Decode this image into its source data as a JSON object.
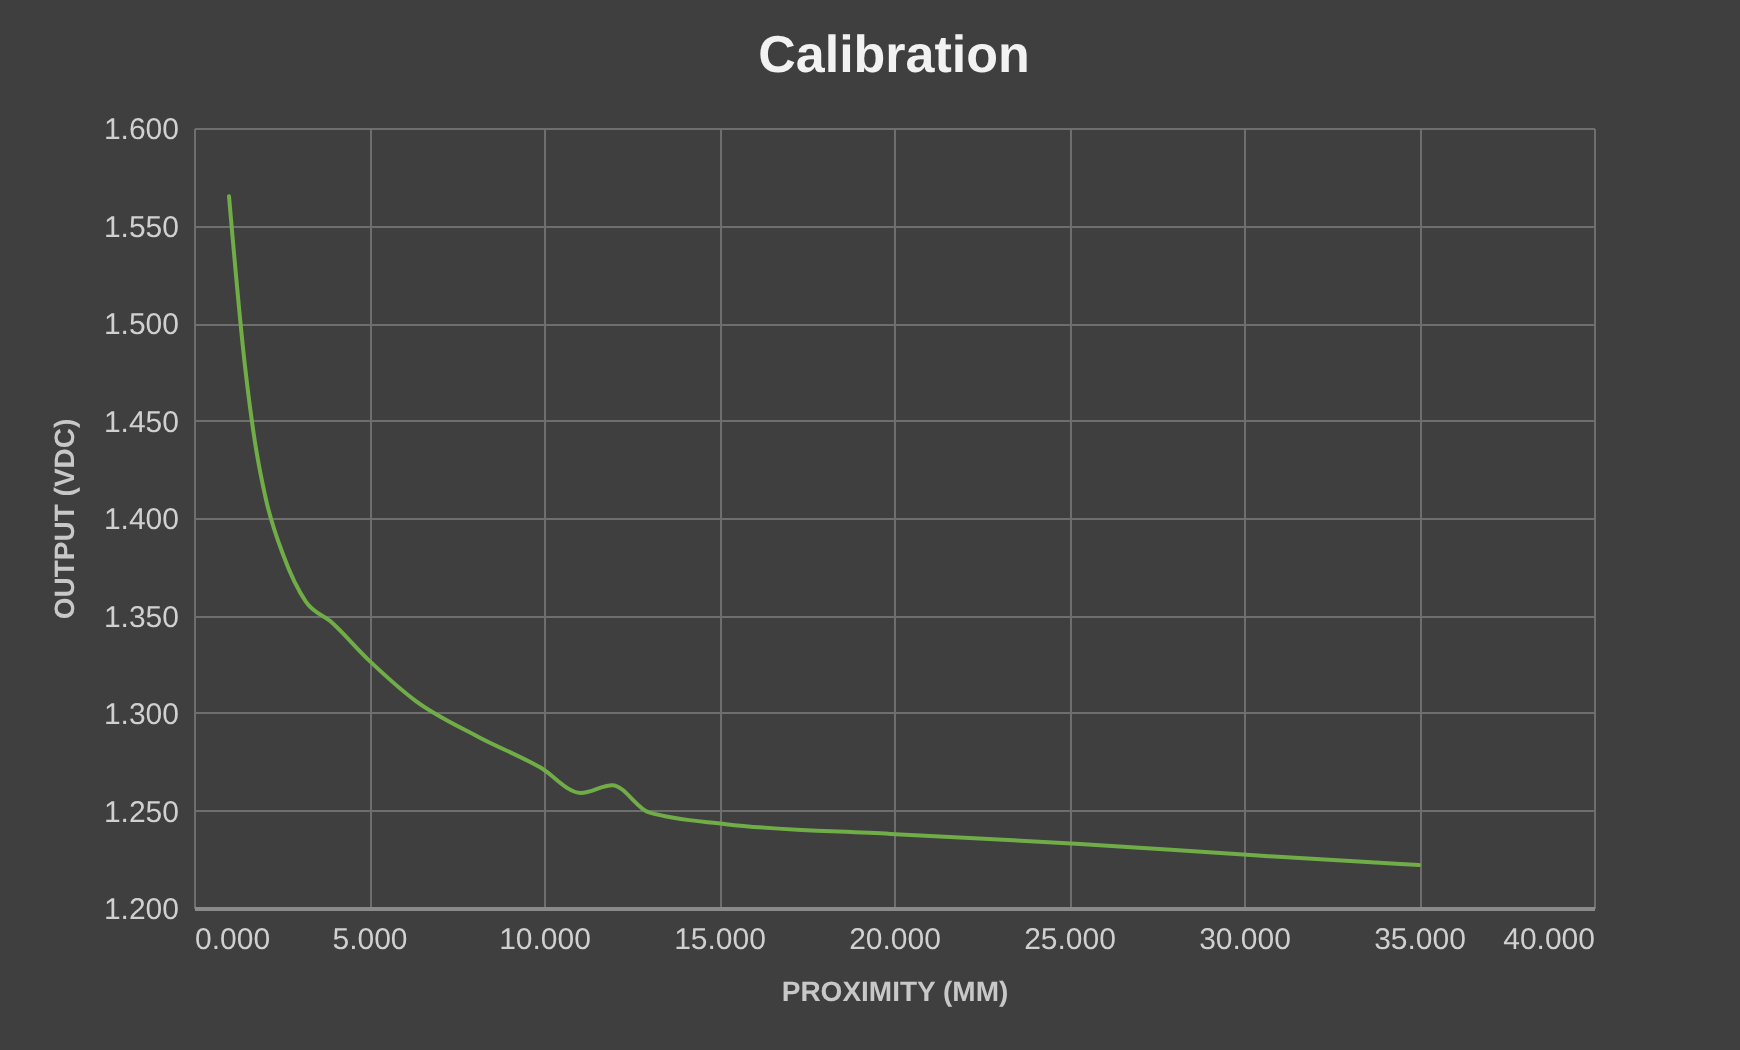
{
  "chart_data": {
    "type": "line",
    "title": "Calibration",
    "xlabel": "PROXIMITY (MM)",
    "ylabel": "OUTPUT (VDC)",
    "x": [
      1.0,
      1.45,
      1.75,
      2.05,
      2.55,
      3.2,
      3.9,
      5.0,
      6.35,
      8.1,
      9.9,
      11.05,
      11.95,
      13.0,
      15.2,
      19.9,
      25.2,
      30.3,
      35.0
    ],
    "series": [
      {
        "color": "#70ad47",
        "values": [
          1.565,
          1.479,
          1.438,
          1.41,
          1.381,
          1.357,
          1.347,
          1.327,
          1.306,
          1.288,
          1.272,
          1.259,
          1.263,
          1.249,
          1.243,
          1.238,
          1.233,
          1.227,
          1.222
        ]
      }
    ],
    "xlim": [
      0,
      40
    ],
    "xticks": [
      {
        "value": 0,
        "label": "0.000"
      },
      {
        "value": 5,
        "label": "5.000"
      },
      {
        "value": 10,
        "label": "10.000"
      },
      {
        "value": 15,
        "label": "15.000"
      },
      {
        "value": 20,
        "label": "20.000"
      },
      {
        "value": 25,
        "label": "25.000"
      },
      {
        "value": 30,
        "label": "30.000"
      },
      {
        "value": 35,
        "label": "35.000"
      },
      {
        "value": 40,
        "label": "40.000"
      }
    ],
    "ylim": [
      1.2,
      1.6
    ],
    "yticks": [
      {
        "value": 1.2,
        "label": "1.200"
      },
      {
        "value": 1.25,
        "label": "1.250"
      },
      {
        "value": 1.3,
        "label": "1.300"
      },
      {
        "value": 1.35,
        "label": "1.350"
      },
      {
        "value": 1.4,
        "label": "1.400"
      },
      {
        "value": 1.45,
        "label": "1.450"
      },
      {
        "value": 1.5,
        "label": "1.500"
      },
      {
        "value": 1.55,
        "label": "1.550"
      },
      {
        "value": 1.6,
        "label": "1.600"
      }
    ],
    "grid": true,
    "marker": "none",
    "line_style": "solid"
  }
}
